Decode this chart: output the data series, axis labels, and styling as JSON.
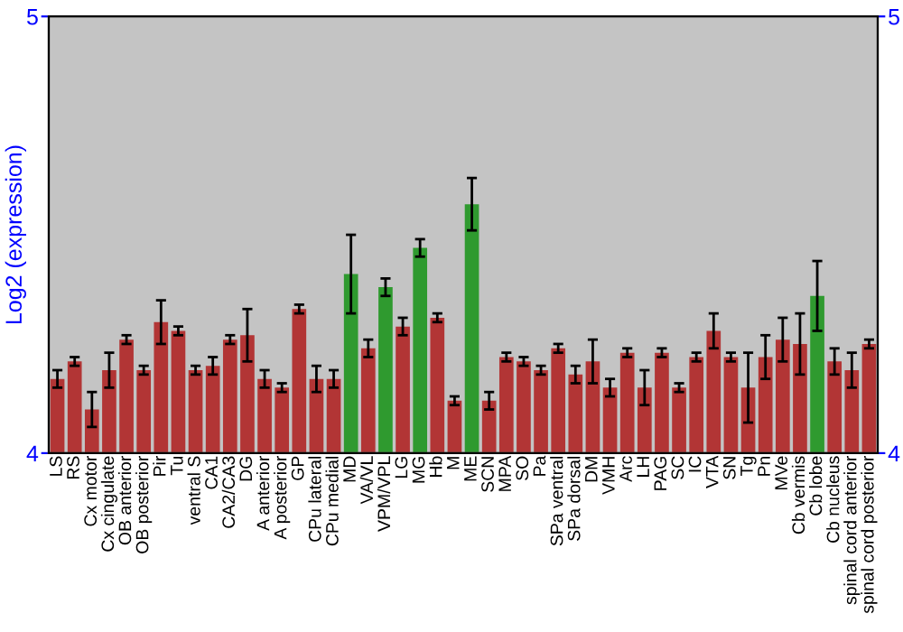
{
  "chart_data": {
    "type": "bar",
    "ylabel": "Log2 (expression)",
    "categories": [
      "LS",
      "RS",
      "Cx motor",
      "Cx cingulate",
      "OB anterior",
      "OB posterior",
      "Pir",
      "Tu",
      "ventral S",
      "CA1",
      "CA2/CA3",
      "DG",
      "A anterior",
      "A posterior",
      "GP",
      "CPu lateral",
      "CPu medial",
      "MD",
      "VA/VL",
      "VPM/VPL",
      "LG",
      "MG",
      "Hb",
      "M",
      "ME",
      "SCN",
      "MPA",
      "SO",
      "Pa",
      "SPa ventral",
      "SPa dorsal",
      "DM",
      "VMH",
      "Arc",
      "LH",
      "PAG",
      "SC",
      "IC",
      "VTA",
      "SN",
      "Tg",
      "Pn",
      "MVe",
      "Cb vermis",
      "Cb lobe",
      "Cb nucleus",
      "spinal cord anterior",
      "spinal cord posterior"
    ],
    "values": [
      4.17,
      4.21,
      4.1,
      4.19,
      4.26,
      4.19,
      4.3,
      4.28,
      4.19,
      4.2,
      4.26,
      4.27,
      4.17,
      4.15,
      4.33,
      4.17,
      4.17,
      4.41,
      4.24,
      4.38,
      4.29,
      4.47,
      4.31,
      4.12,
      4.57,
      4.12,
      4.22,
      4.21,
      4.19,
      4.24,
      4.18,
      4.21,
      4.15,
      4.23,
      4.15,
      4.23,
      4.15,
      4.22,
      4.28,
      4.22,
      4.15,
      4.22,
      4.26,
      4.25,
      4.36,
      4.21,
      4.19,
      4.25
    ],
    "errors": [
      0.02,
      0.01,
      0.04,
      0.04,
      0.01,
      0.01,
      0.05,
      0.01,
      0.01,
      0.02,
      0.01,
      0.06,
      0.02,
      0.01,
      0.01,
      0.03,
      0.02,
      0.09,
      0.02,
      0.02,
      0.02,
      0.02,
      0.01,
      0.01,
      0.06,
      0.02,
      0.01,
      0.01,
      0.01,
      0.01,
      0.02,
      0.05,
      0.02,
      0.01,
      0.04,
      0.01,
      0.01,
      0.01,
      0.04,
      0.01,
      0.08,
      0.05,
      0.05,
      0.07,
      0.08,
      0.03,
      0.04,
      0.01
    ],
    "colors": [
      "#b23535",
      "#b23535",
      "#b23535",
      "#b23535",
      "#b23535",
      "#b23535",
      "#b23535",
      "#b23535",
      "#b23535",
      "#b23535",
      "#b23535",
      "#b23535",
      "#b23535",
      "#b23535",
      "#b23535",
      "#b23535",
      "#b23535",
      "#2f9a2f",
      "#b23535",
      "#2f9a2f",
      "#b23535",
      "#2f9a2f",
      "#b23535",
      "#b23535",
      "#2f9a2f",
      "#b23535",
      "#b23535",
      "#b23535",
      "#b23535",
      "#b23535",
      "#b23535",
      "#b23535",
      "#b23535",
      "#b23535",
      "#b23535",
      "#b23535",
      "#b23535",
      "#b23535",
      "#b23535",
      "#b23535",
      "#b23535",
      "#b23535",
      "#b23535",
      "#b23535",
      "#2f9a2f",
      "#b23535",
      "#b23535",
      "#b23535"
    ],
    "ylim": [
      4,
      5
    ],
    "yticks": [
      4,
      5
    ],
    "y2lim": [
      4,
      5
    ],
    "y2ticks": [
      4,
      5
    ],
    "grid": false,
    "legend": false
  }
}
